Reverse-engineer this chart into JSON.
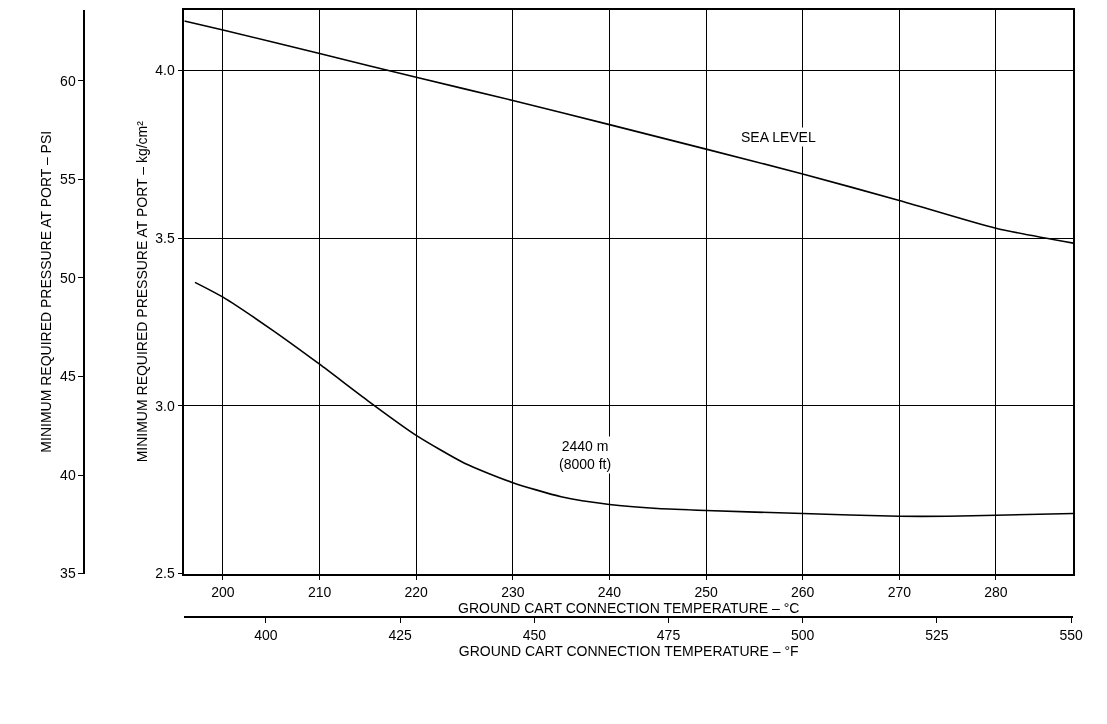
{
  "chart_data": {
    "type": "line",
    "xlabel": "GROUND CART CONNECTION TEMPERATURE – °C",
    "ylabel": "MINIMUM REQUIRED PRESSURE AT PORT – kg/cm²",
    "y2label": "MINIMUM REQUIRED PRESSURE AT PORT – PSI",
    "x2label": "GROUND CART CONNECTION TEMPERATURE – °F",
    "xlim": [
      196,
      288
    ],
    "xticks": [
      200,
      210,
      220,
      230,
      240,
      250,
      260,
      270,
      280
    ],
    "ylim": [
      2.5,
      4.18
    ],
    "yticks": [
      2.5,
      {
        "value": 3,
        "label": "3.0"
      },
      3.5,
      {
        "value": 4,
        "label": "4.0"
      }
    ],
    "y2lim": [
      35,
      63.6
    ],
    "y2ticks": [
      35,
      40,
      45,
      50,
      55,
      60
    ],
    "x2lim": [
      384.8,
      550.4
    ],
    "x2ticks": [
      400,
      425,
      450,
      475,
      500,
      525,
      550
    ],
    "grid": true,
    "line_style": "solid",
    "marker": "none",
    "series": [
      {
        "color": "#000000",
        "x": [
          196,
          200,
          210,
          220,
          230,
          240,
          250,
          260,
          270,
          280,
          288
        ],
        "values": [
          4.147,
          4.12,
          4.05,
          3.979,
          3.91,
          3.838,
          3.765,
          3.691,
          3.612,
          3.529,
          3.485
        ]
      },
      {
        "color": "#000000",
        "x": [
          197.1,
          200,
          205,
          210,
          215,
          220,
          225,
          230,
          235,
          240,
          245,
          250,
          260,
          270,
          275,
          280,
          288
        ],
        "values": [
          3.368,
          3.324,
          3.228,
          3.124,
          3.015,
          2.912,
          2.829,
          2.771,
          2.729,
          2.706,
          2.694,
          2.688,
          2.679,
          2.671,
          2.671,
          2.674,
          2.679
        ]
      }
    ],
    "annotations": [
      "SEA LEVEL",
      "2440 m\n(8000 ft)"
    ]
  }
}
